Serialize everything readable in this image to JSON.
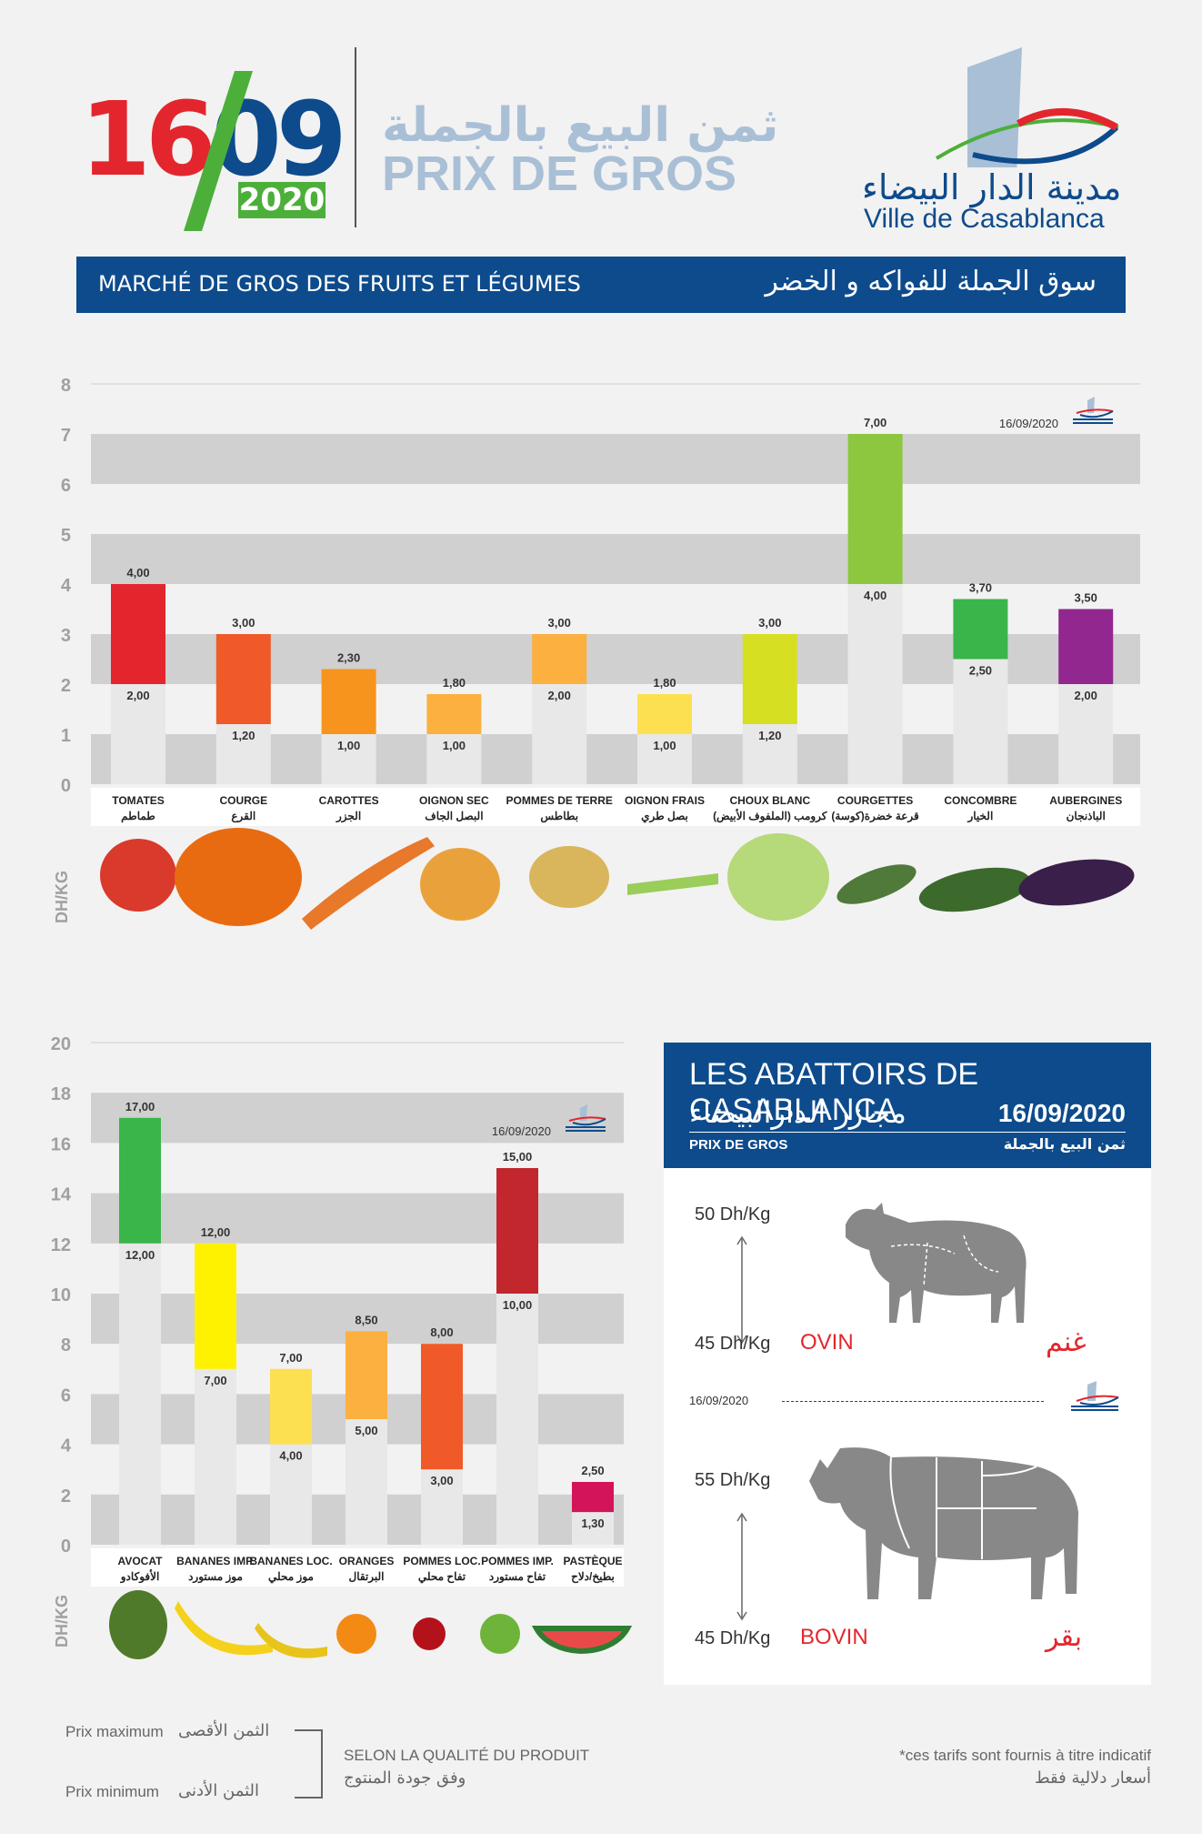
{
  "header": {
    "date_day": "16",
    "date_month": "09",
    "date_year": "2020",
    "title_ar": "ثمن البيع بالجملة",
    "title_fr": "PRIX DE GROS",
    "logo_ar": "مدينة الدار البيضاء",
    "logo_fr": "Ville de Casablanca"
  },
  "banner": {
    "left": "MARCHÉ DE GROS DES FRUITS ET LÉGUMES",
    "right": "سوق الجملة للفواكه و الخضر"
  },
  "chart_data": [
    {
      "type": "bar",
      "title": "",
      "ylabel": "DH/KG",
      "ylim": [
        0,
        8
      ],
      "yticks": [
        0,
        1,
        2,
        3,
        4,
        5,
        6,
        7,
        8
      ],
      "date_label": "16/09/2020",
      "categories": [
        "TOMATES",
        "COURGE",
        "CAROTTES",
        "OIGNON SEC",
        "POMMES DE TERRE",
        "OIGNON FRAIS",
        "CHOUX BLANC",
        "COURGETTES",
        "CONCOMBRE",
        "AUBERGINES"
      ],
      "categories_ar": [
        "طماطم",
        "القرع",
        "الجزر",
        "البصل الجاف",
        "بطاطس",
        "بصل طري",
        "كرومب (الملفوف الأبيض)",
        "قرعة خضرة(كوسة)",
        "الخيار",
        "الباذنجان"
      ],
      "series": [
        {
          "name": "Prix minimum",
          "values": [
            2.0,
            1.2,
            1.0,
            1.0,
            2.0,
            1.0,
            1.2,
            4.0,
            2.5,
            2.0
          ]
        },
        {
          "name": "Prix maximum",
          "values": [
            4.0,
            3.0,
            2.3,
            1.8,
            3.0,
            1.8,
            3.0,
            7.0,
            3.7,
            3.5
          ]
        }
      ],
      "value_labels_min": [
        "2,00",
        "1,20",
        "1,00",
        "1,00",
        "2,00",
        "1,00",
        "1,20",
        "4,00",
        "2,50",
        "2,00"
      ],
      "value_labels_max": [
        "4,00",
        "3,00",
        "2,30",
        "1,80",
        "3,00",
        "1,80",
        "3,00",
        "7,00",
        "3,70",
        "3,50"
      ],
      "colors": [
        "#e3262d",
        "#f05a28",
        "#f7941d",
        "#fbb040",
        "#fbb040",
        "#fde050",
        "#d7df23",
        "#8dc63f",
        "#39b54a",
        "#92278f"
      ],
      "grid": true
    },
    {
      "type": "bar",
      "title": "",
      "ylabel": "DH/KG",
      "ylim": [
        0,
        20
      ],
      "yticks": [
        0,
        2,
        4,
        6,
        8,
        10,
        12,
        14,
        16,
        18,
        20
      ],
      "date_label": "16/09/2020",
      "categories": [
        "AVOCAT",
        "BANANES IMP.",
        "BANANES LOC.",
        "ORANGES",
        "POMMES LOC.",
        "POMMES IMP.",
        "PASTÈQUE"
      ],
      "categories_ar": [
        "الأفوكادو",
        "موز مستورد",
        "موز محلي",
        "البرتقال",
        "تفاح محلي",
        "تفاح مستورد",
        "بطيخ/دلاح"
      ],
      "series": [
        {
          "name": "Prix minimum",
          "values": [
            12.0,
            7.0,
            4.0,
            5.0,
            3.0,
            10.0,
            1.3
          ]
        },
        {
          "name": "Prix maximum",
          "values": [
            17.0,
            12.0,
            7.0,
            8.5,
            8.0,
            15.0,
            2.5
          ]
        }
      ],
      "value_labels_min": [
        "12,00",
        "7,00",
        "4,00",
        "5,00",
        "3,00",
        "10,00",
        "1,30"
      ],
      "value_labels_max": [
        "17,00",
        "12,00",
        "7,00",
        "8,50",
        "8,00",
        "15,00",
        "2,50"
      ],
      "colors": [
        "#39b54a",
        "#fff200",
        "#fde050",
        "#fbb040",
        "#f05a28",
        "#c1272d",
        "#d4145a"
      ],
      "grid": true
    }
  ],
  "abattoirs": {
    "title": "LES ABATTOIRS DE CASABLANCA",
    "title_ar": "مجازر الدارالبيضاء",
    "date": "16/09/2020",
    "sub_fr": "PRIX DE GROS",
    "sub_ar": "ثمن البيع بالجملة",
    "ovin": {
      "name_fr": "OVIN",
      "name_ar": "غنم",
      "max": "50 Dh/Kg",
      "min": "45 Dh/Kg",
      "max_value": 50,
      "min_value": 45
    },
    "bovin": {
      "name_fr": "BOVIN",
      "name_ar": "بقر",
      "max": "55 Dh/Kg",
      "min": "45 Dh/Kg",
      "max_value": 55,
      "min_value": 45
    },
    "divider_date": "16/09/2020"
  },
  "legend": {
    "max_fr": "Prix maximum",
    "max_ar": "الثمن الأقصى",
    "min_fr": "Prix minimum",
    "min_ar": "الثمن الأدنى",
    "quality_fr": "SELON LA QUALITÉ DU PRODUIT",
    "quality_ar": "وفق جودة المنتوج"
  },
  "footnote": {
    "fr": "*ces tarifs sont fournis à titre indicatif",
    "ar": "أسعار دلالية فقط"
  }
}
